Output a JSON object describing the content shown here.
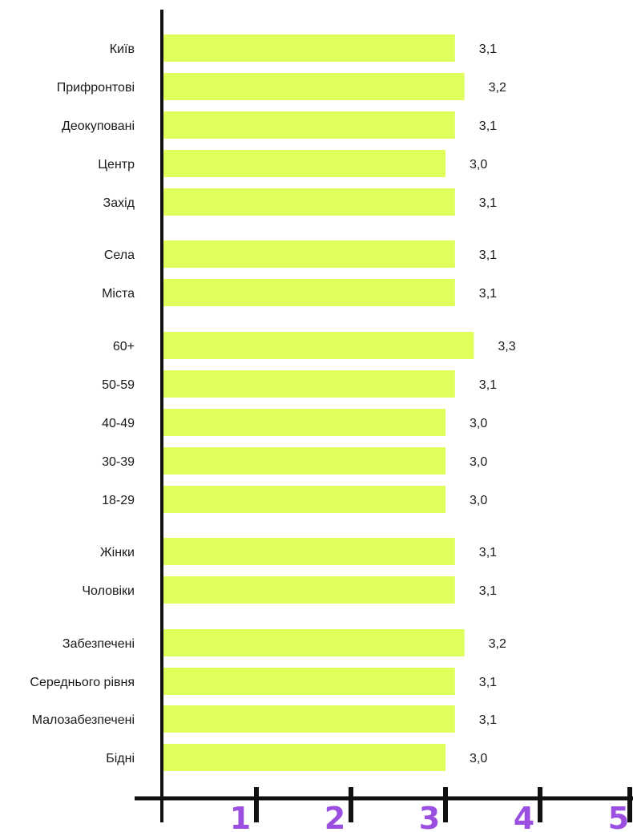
{
  "chart_data": {
    "type": "bar",
    "orientation": "horizontal",
    "title": "",
    "xlabel": "",
    "ylabel": "",
    "xlim": [
      0,
      5
    ],
    "x_ticks": [
      "1",
      "2",
      "3",
      "4",
      "5"
    ],
    "grid": false,
    "legend": "none",
    "bar_color": "#dfff5a",
    "tick_color": "#9b4fe0",
    "axis_color": "#111111",
    "categories": [
      "Київ",
      "Прифронтові",
      "Деокуповані",
      "Центр",
      "Захід",
      "Села",
      "Міста",
      "60+",
      "50-59",
      "40-49",
      "30-39",
      "18-29",
      "Жінки",
      "Чоловіки",
      "Забезпечені",
      "Середнього рівня",
      "Малозабезпечені",
      "Бідні"
    ],
    "values": [
      3.1,
      3.2,
      3.1,
      3.0,
      3.1,
      3.1,
      3.1,
      3.3,
      3.1,
      3.0,
      3.0,
      3.0,
      3.1,
      3.1,
      3.2,
      3.1,
      3.1,
      3.0
    ],
    "value_labels": [
      "3,1",
      "3,2",
      "3,1",
      "3,0",
      "3,1",
      "3,1",
      "3,1",
      "3,3",
      "3,1",
      "3,0",
      "3,0",
      "3,0",
      "3,1",
      "3,1",
      "3,2",
      "3,1",
      "3,1",
      "3,0"
    ]
  }
}
